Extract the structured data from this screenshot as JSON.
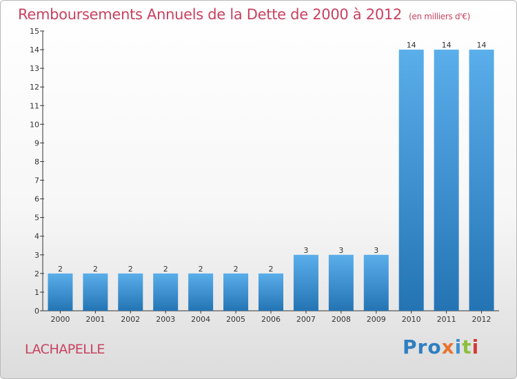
{
  "header": {
    "title": "Remboursements Annuels de la Dette de 2000 à 2012",
    "unit": "(en milliers d'€)"
  },
  "footer": {
    "commune": "LACHAPELLE",
    "logo": [
      "Pro",
      "x",
      "i",
      "t",
      "i"
    ]
  },
  "colors": {
    "title": "#c8415f",
    "bar_top": "#5aaeea",
    "bar_bottom": "#2474b4"
  },
  "chart_data": {
    "type": "bar",
    "title": "Remboursements Annuels de la Dette de 2000 à 2012",
    "xlabel": "",
    "ylabel": "",
    "categories": [
      "2000",
      "2001",
      "2002",
      "2003",
      "2004",
      "2005",
      "2006",
      "2007",
      "2008",
      "2009",
      "2010",
      "2011",
      "2012"
    ],
    "values": [
      2,
      2,
      2,
      2,
      2,
      2,
      2,
      3,
      3,
      3,
      14,
      14,
      14
    ],
    "data_labels": [
      "2",
      "2",
      "2",
      "2",
      "2",
      "2",
      "2",
      "3",
      "3",
      "3",
      "14",
      "14",
      "14"
    ],
    "ylim": [
      0,
      15
    ],
    "yticks": [
      0,
      1,
      2,
      3,
      4,
      5,
      6,
      7,
      8,
      9,
      10,
      11,
      12,
      13,
      14,
      15
    ],
    "grid": false
  }
}
